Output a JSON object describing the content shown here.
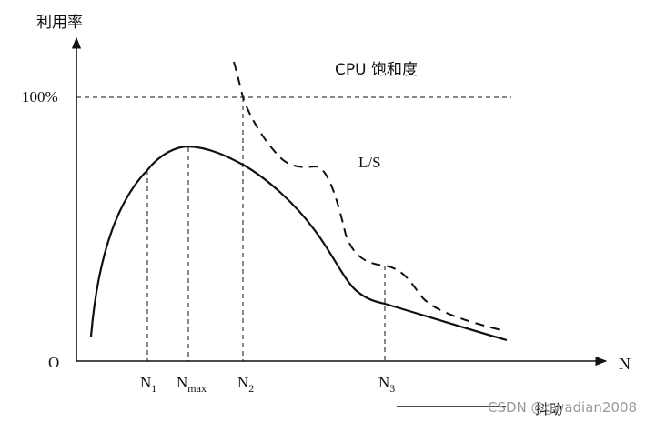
{
  "axes": {
    "y_label": "利用率",
    "x_label": "N",
    "origin_label": "O",
    "y_mark_label": "100%"
  },
  "annotations": {
    "cpu_saturation": "CPU 饱和度",
    "ls": "L/S"
  },
  "x_marks": [
    {
      "base": "N",
      "sub": "1"
    },
    {
      "base": "N",
      "sub": "max"
    },
    {
      "base": "N",
      "sub": "2"
    },
    {
      "base": "N",
      "sub": "3"
    }
  ],
  "footer": {
    "label": "抖动"
  },
  "watermark": "CSDN @gwadian2008",
  "colors": {
    "ink": "#111111",
    "watermark": "#9a9a9a"
  }
}
